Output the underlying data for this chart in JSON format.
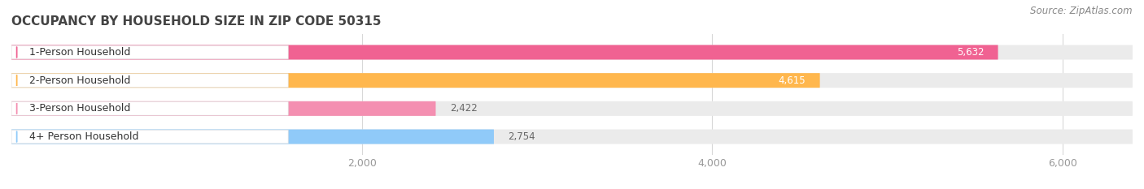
{
  "title": "OCCUPANCY BY HOUSEHOLD SIZE IN ZIP CODE 50315",
  "source": "Source: ZipAtlas.com",
  "categories": [
    "1-Person Household",
    "2-Person Household",
    "3-Person Household",
    "4+ Person Household"
  ],
  "values": [
    5632,
    4615,
    2422,
    2754
  ],
  "bar_colors": [
    "#f06292",
    "#ffb74d",
    "#f48fb1",
    "#90caf9"
  ],
  "bar_bg_color": "#ebebeb",
  "label_colors": [
    "#ffffff",
    "#ffffff",
    "#555555",
    "#555555"
  ],
  "xlim_max": 6400,
  "xticks": [
    2000,
    4000,
    6000
  ],
  "xtick_labels": [
    "2,000",
    "4,000",
    "6,000"
  ],
  "title_fontsize": 11,
  "source_fontsize": 8.5,
  "tick_fontsize": 9,
  "bar_label_fontsize": 8.5,
  "cat_label_fontsize": 9,
  "background_color": "#ffffff"
}
